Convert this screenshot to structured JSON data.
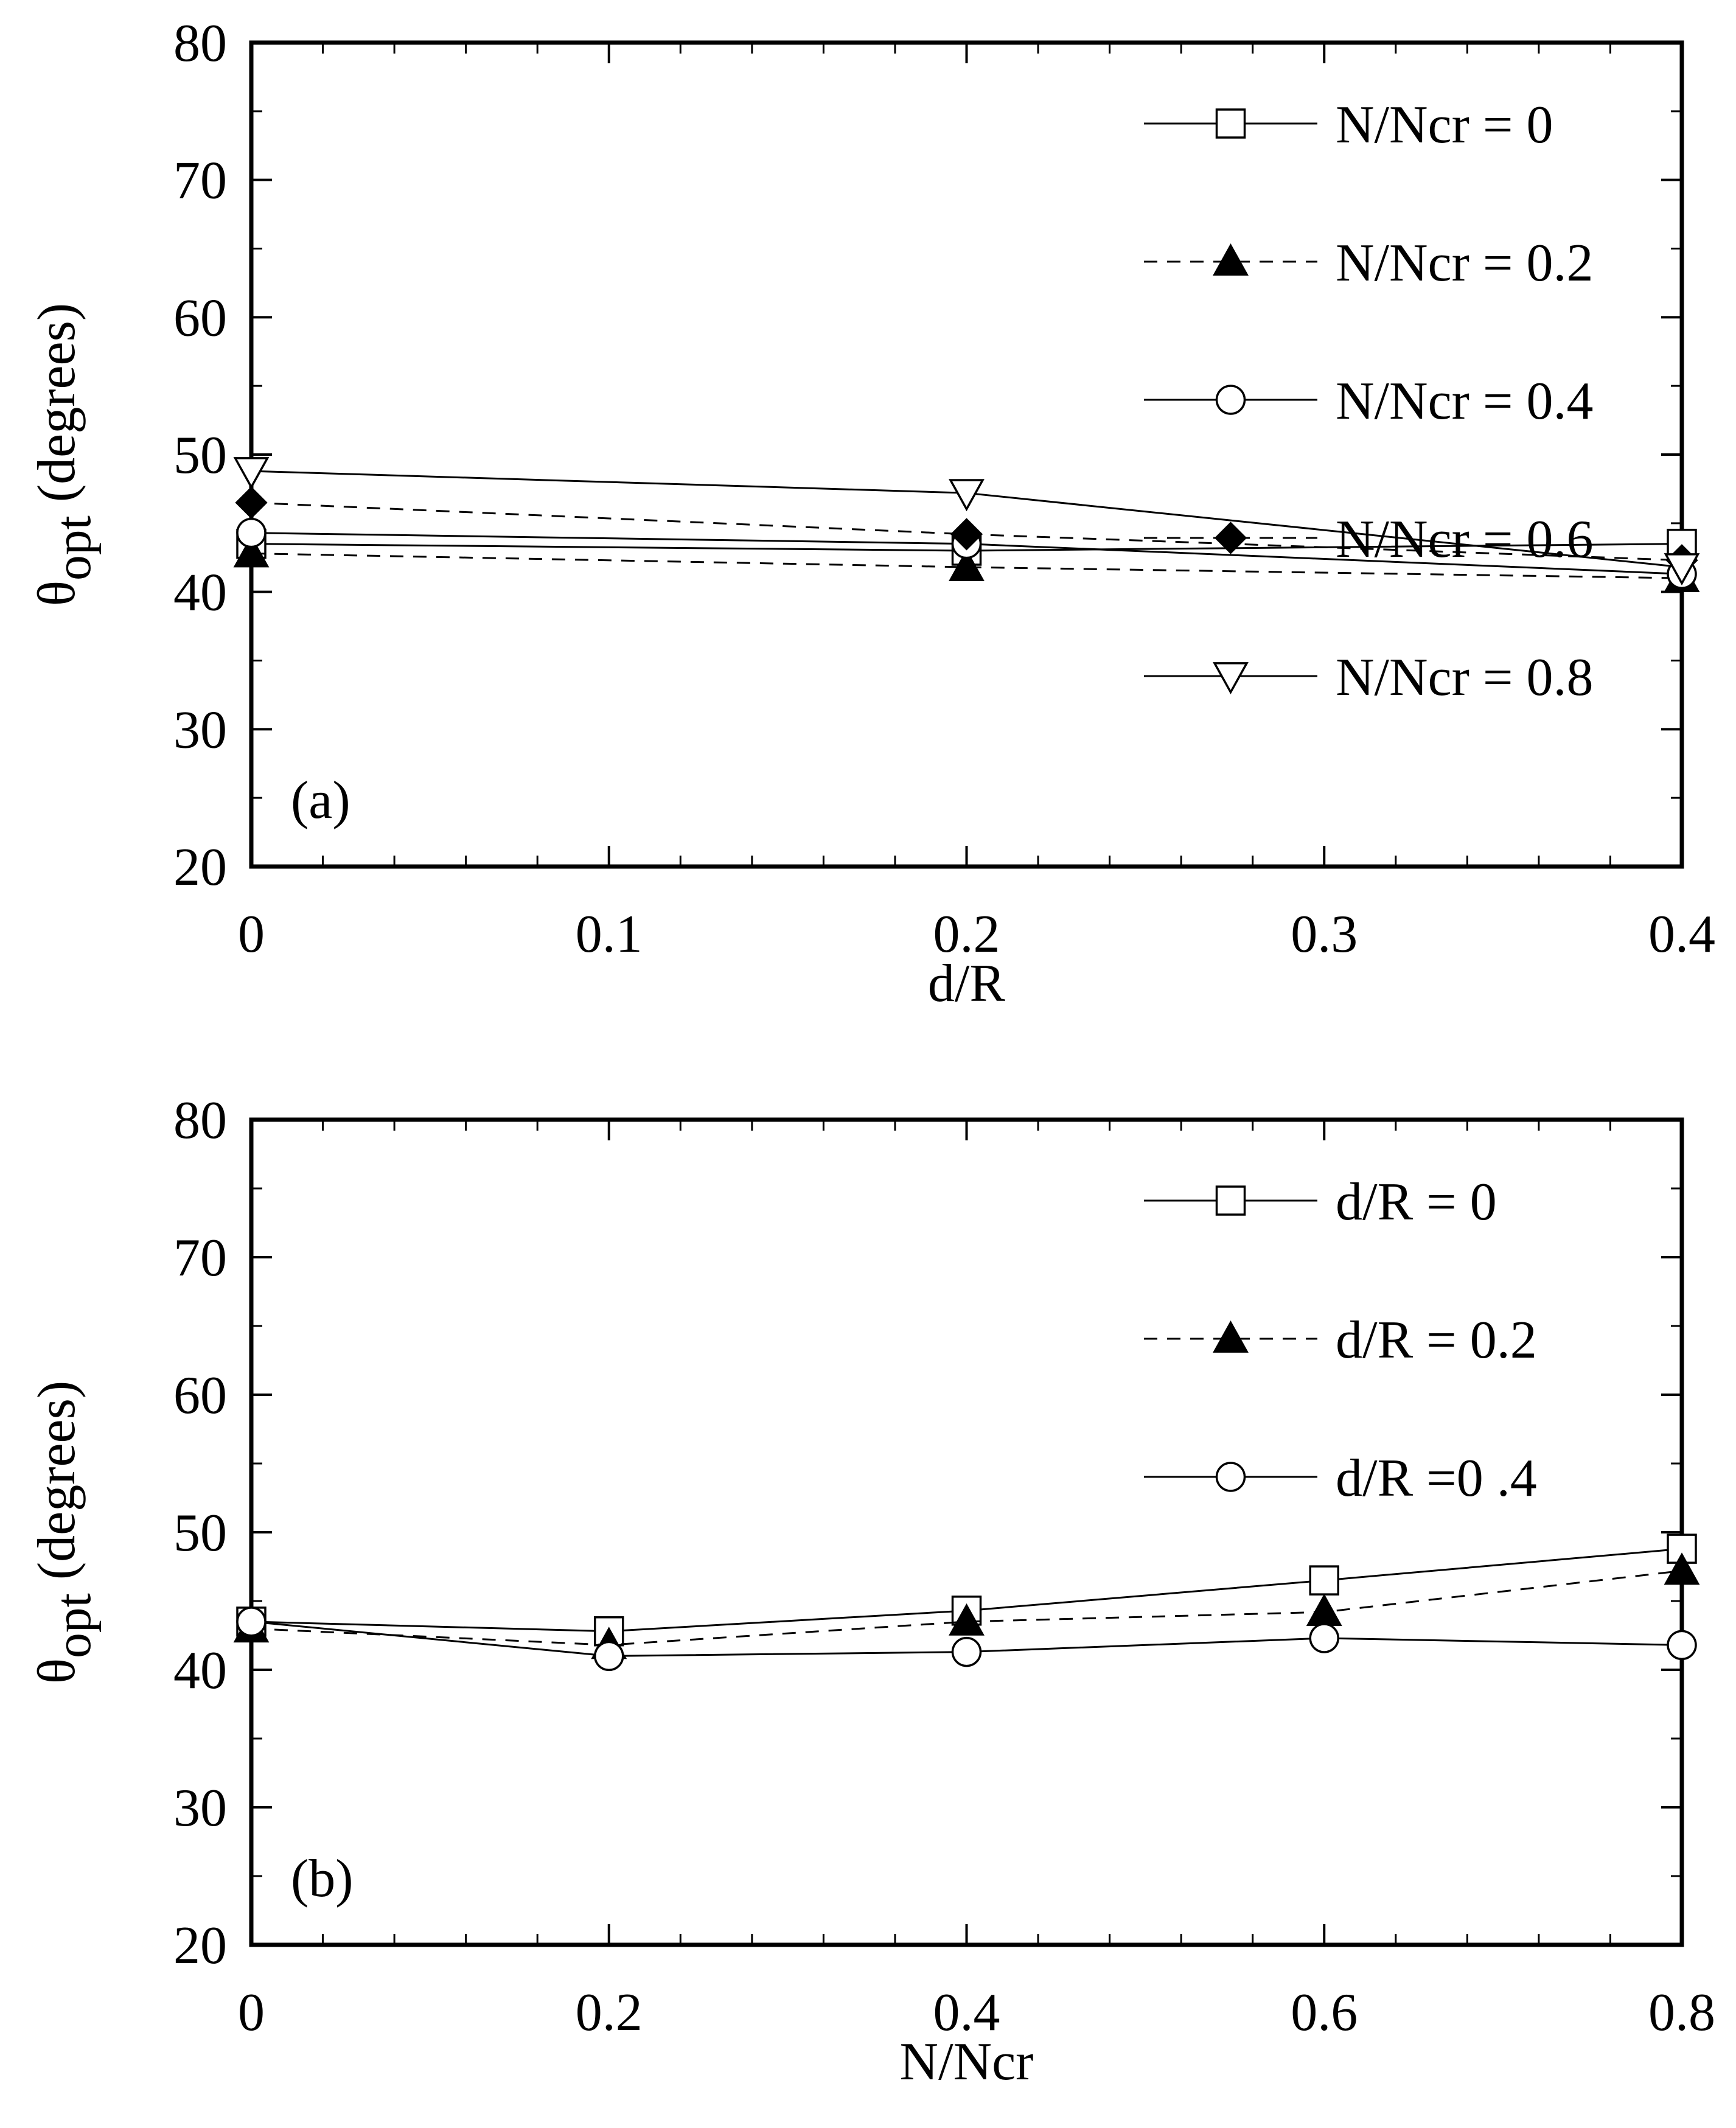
{
  "chart_data": [
    {
      "type": "line",
      "panel_label": "(a)",
      "xlabel": "d/R",
      "ylabel_main": "θ",
      "ylabel_sub": "opt",
      "ylabel_rest": " (degrees)",
      "xlim": [
        0,
        0.4
      ],
      "ylim": [
        20,
        80
      ],
      "xticks": [
        "0",
        "0.1",
        "0.2",
        "0.3",
        "0.4"
      ],
      "xtick_values": [
        0,
        0.1,
        0.2,
        0.3,
        0.4
      ],
      "yticks": [
        "20",
        "30",
        "40",
        "50",
        "60",
        "70",
        "80"
      ],
      "ytick_values": [
        20,
        30,
        40,
        50,
        60,
        70,
        80
      ],
      "legend_position": "top-right",
      "x": [
        0,
        0.2,
        0.4
      ],
      "series": [
        {
          "name": "N/Ncr = 0",
          "marker": "square-open",
          "line": "solid",
          "values": [
            43.5,
            43.0,
            43.5
          ]
        },
        {
          "name": "N/Ncr = 0.2",
          "marker": "triangle-filled",
          "line": "dashed",
          "values": [
            42.8,
            41.8,
            41.0
          ]
        },
        {
          "name": "N/Ncr = 0.4",
          "marker": "circle-open",
          "line": "solid",
          "values": [
            44.3,
            43.5,
            41.3
          ]
        },
        {
          "name": "N/Ncr = 0.6",
          "marker": "diamond-filled",
          "line": "dashed",
          "values": [
            46.5,
            44.2,
            42.3
          ]
        },
        {
          "name": "N/Ncr = 0.8",
          "marker": "triangle-down-open",
          "line": "solid",
          "values": [
            48.8,
            47.2,
            41.8
          ]
        }
      ]
    },
    {
      "type": "line",
      "panel_label": "(b)",
      "xlabel": "N/Ncr",
      "ylabel_main": "θ",
      "ylabel_sub": "opt",
      "ylabel_rest": " (degrees)",
      "xlim": [
        0,
        0.8
      ],
      "ylim": [
        20,
        80
      ],
      "xticks": [
        "0",
        "0.2",
        "0.4",
        "0.6",
        "0.8"
      ],
      "xtick_values": [
        0,
        0.2,
        0.4,
        0.6,
        0.8
      ],
      "yticks": [
        "20",
        "30",
        "40",
        "50",
        "60",
        "70",
        "80"
      ],
      "ytick_values": [
        20,
        30,
        40,
        50,
        60,
        70,
        80
      ],
      "legend_position": "top-right",
      "x": [
        0,
        0.2,
        0.4,
        0.6,
        0.8
      ],
      "series": [
        {
          "name": "d/R = 0",
          "marker": "square-open",
          "line": "solid",
          "values": [
            43.5,
            42.8,
            44.3,
            46.5,
            48.8
          ]
        },
        {
          "name": "d/R = 0.2",
          "marker": "triangle-filled",
          "line": "dashed",
          "values": [
            43.0,
            41.8,
            43.5,
            44.2,
            47.2
          ]
        },
        {
          "name": "d/R =0 .4",
          "marker": "circle-open",
          "line": "solid",
          "values": [
            43.5,
            41.0,
            41.3,
            42.3,
            41.8
          ]
        }
      ]
    }
  ]
}
